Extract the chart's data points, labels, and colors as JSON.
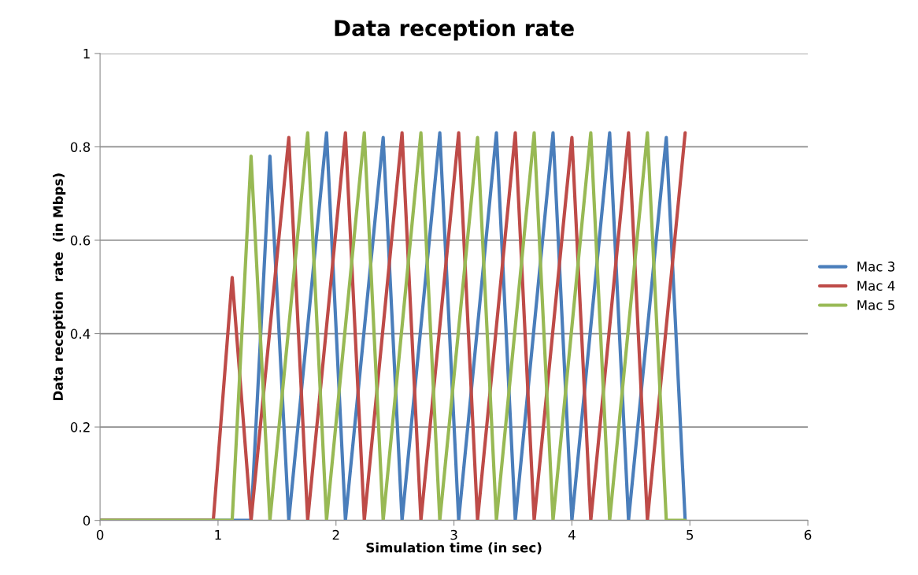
{
  "chart_data": {
    "type": "line",
    "title": "Data reception rate",
    "xlabel": "Simulation time (in sec)",
    "ylabel": "Data reception  rate  (in Mbps)",
    "xlim": [
      0,
      6
    ],
    "xticks": [
      0,
      1,
      2,
      3,
      4,
      5,
      6
    ],
    "ylim": [
      0,
      1
    ],
    "yticks": [
      0,
      0.2,
      0.4,
      0.6,
      0.8,
      1
    ],
    "grid": "y",
    "legend": "right",
    "line_style": "solid",
    "marker": "none",
    "series": [
      {
        "name": "Mac 3",
        "color": "#4a7ebb",
        "x": [
          0,
          1.12,
          1.28,
          1.44,
          1.6,
          1.92,
          2.08,
          2.4,
          2.56,
          2.88,
          3.04,
          3.36,
          3.52,
          3.84,
          4.0,
          4.32,
          4.48,
          4.8,
          4.96
        ],
        "values": [
          0,
          0,
          0,
          0.78,
          0,
          0.83,
          0,
          0.82,
          0,
          0.83,
          0,
          0.83,
          0,
          0.83,
          0,
          0.83,
          0,
          0.82,
          0
        ]
      },
      {
        "name": "Mac 4",
        "color": "#be4b48",
        "x": [
          0,
          0.96,
          1.12,
          1.28,
          1.6,
          1.76,
          2.08,
          2.24,
          2.56,
          2.72,
          3.04,
          3.2,
          3.52,
          3.68,
          4.0,
          4.16,
          4.48,
          4.64,
          4.96
        ],
        "values": [
          0,
          0,
          0.52,
          0,
          0.82,
          0,
          0.83,
          0,
          0.83,
          0,
          0.83,
          0,
          0.83,
          0,
          0.82,
          0,
          0.83,
          0,
          0.83
        ]
      },
      {
        "name": "Mac 5",
        "color": "#98b954",
        "x": [
          0,
          1.12,
          1.28,
          1.44,
          1.76,
          1.92,
          2.24,
          2.4,
          2.72,
          2.88,
          3.2,
          3.36,
          3.68,
          3.84,
          4.16,
          4.32,
          4.64,
          4.8,
          4.96
        ],
        "values": [
          0,
          0,
          0.78,
          0,
          0.83,
          0,
          0.83,
          0,
          0.83,
          0,
          0.82,
          0,
          0.83,
          0,
          0.83,
          0,
          0.83,
          0,
          0
        ]
      }
    ]
  }
}
